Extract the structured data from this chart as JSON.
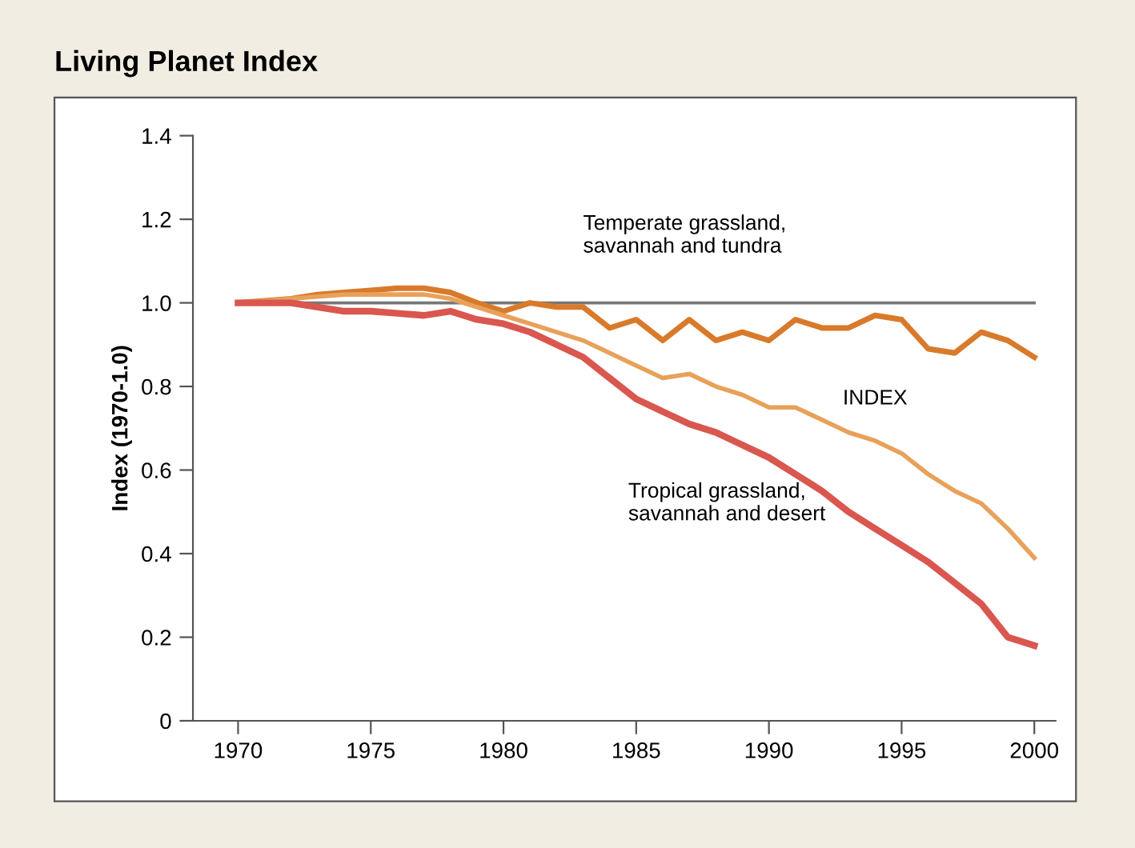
{
  "chart_data": {
    "type": "line",
    "title": "Living Planet Index",
    "ylabel": "Index (1970-1.0)",
    "x": [
      1970,
      1971,
      1972,
      1973,
      1974,
      1975,
      1976,
      1977,
      1978,
      1979,
      1980,
      1981,
      1982,
      1983,
      1984,
      1985,
      1986,
      1987,
      1988,
      1989,
      1990,
      1991,
      1992,
      1993,
      1994,
      1995,
      1996,
      1997,
      1998,
      1999,
      2000
    ],
    "series": [
      {
        "name": "Temperate grassland,\nsavannah and tundra",
        "color": "#d97a2b",
        "values": [
          1.0,
          1.005,
          1.01,
          1.02,
          1.025,
          1.03,
          1.035,
          1.035,
          1.025,
          1.0,
          0.98,
          1.0,
          0.99,
          0.99,
          0.94,
          0.96,
          0.91,
          0.96,
          0.91,
          0.93,
          0.91,
          0.96,
          0.94,
          0.94,
          0.97,
          0.96,
          0.89,
          0.88,
          0.93,
          0.91,
          0.87
        ]
      },
      {
        "name": "INDEX",
        "color": "#e8a15a",
        "values": [
          1.0,
          1.005,
          1.01,
          1.015,
          1.02,
          1.02,
          1.02,
          1.02,
          1.01,
          0.99,
          0.97,
          0.95,
          0.93,
          0.91,
          0.88,
          0.85,
          0.82,
          0.83,
          0.8,
          0.78,
          0.75,
          0.75,
          0.72,
          0.69,
          0.67,
          0.64,
          0.59,
          0.55,
          0.52,
          0.46,
          0.39
        ]
      },
      {
        "name": "Tropical grassland,\nsavannah and desert",
        "color": "#d9574f",
        "values": [
          1.0,
          1.0,
          1.0,
          0.99,
          0.98,
          0.98,
          0.975,
          0.97,
          0.98,
          0.96,
          0.95,
          0.93,
          0.9,
          0.87,
          0.82,
          0.77,
          0.74,
          0.71,
          0.69,
          0.66,
          0.63,
          0.59,
          0.55,
          0.5,
          0.46,
          0.42,
          0.38,
          0.33,
          0.28,
          0.2,
          0.18
        ]
      }
    ],
    "xlim": [
      1968.3,
      2000.8
    ],
    "xticks": [
      1970,
      1975,
      1980,
      1985,
      1990,
      1995,
      2000
    ],
    "ylim": [
      0,
      1.4
    ],
    "yticks": [
      0,
      0.2,
      0.4,
      0.6,
      0.8,
      {
        "value": 1,
        "label": "1.0"
      },
      1.2,
      1.4
    ],
    "ref_lines": [
      {
        "axis": "y",
        "value": 1.0,
        "color": "#777777"
      }
    ],
    "grid": false,
    "legend": false,
    "line_style": "solid",
    "marker": "none"
  }
}
